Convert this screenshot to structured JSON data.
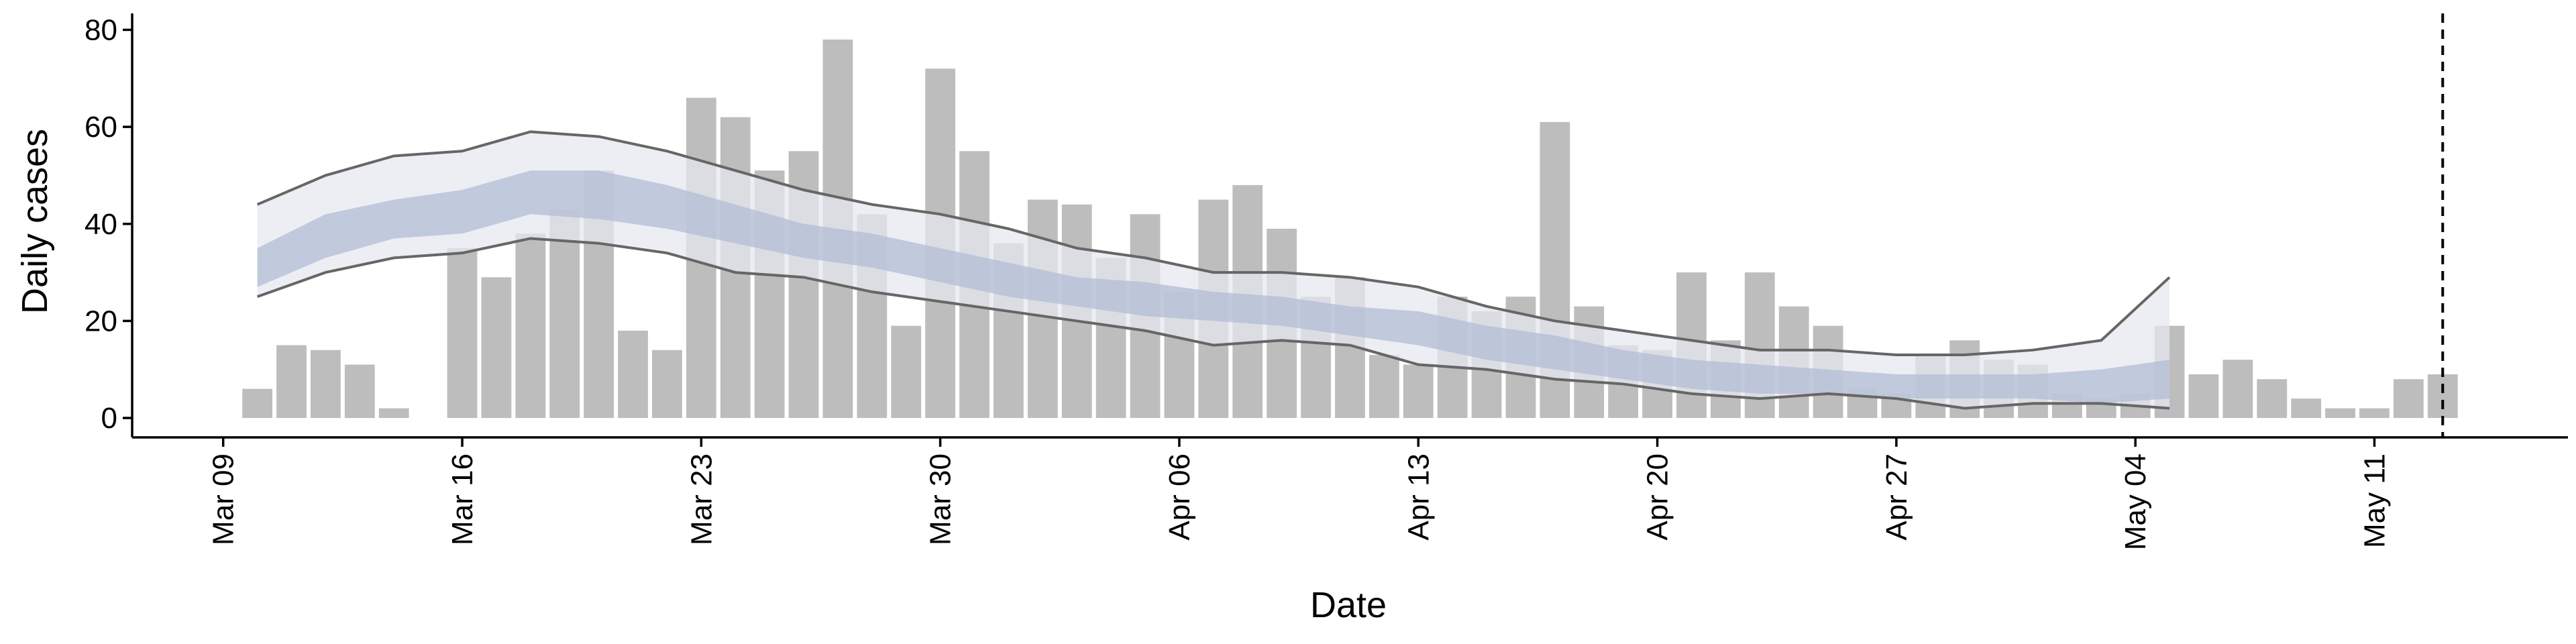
{
  "chart_data": {
    "type": "bar",
    "x_label": "Date",
    "y_label": "Daily cases",
    "xlim": [
      "Mar 06",
      "May 16"
    ],
    "xticks": [
      "Mar 09",
      "Mar 16",
      "Mar 23",
      "Mar 30",
      "Apr 06",
      "Apr 13",
      "Apr 20",
      "Apr 27",
      "May 04",
      "May 11"
    ],
    "ylim": [
      -4,
      82
    ],
    "yticks": [
      0,
      20,
      40,
      60,
      80
    ],
    "vline": "May 13",
    "x": [
      "Mar 10",
      "Mar 11",
      "Mar 12",
      "Mar 13",
      "Mar 14",
      "Mar 15",
      "Mar 16",
      "Mar 17",
      "Mar 18",
      "Mar 19",
      "Mar 20",
      "Mar 21",
      "Mar 22",
      "Mar 23",
      "Mar 24",
      "Mar 25",
      "Mar 26",
      "Mar 27",
      "Mar 28",
      "Mar 29",
      "Mar 30",
      "Mar 31",
      "Apr 01",
      "Apr 02",
      "Apr 03",
      "Apr 04",
      "Apr 05",
      "Apr 06",
      "Apr 07",
      "Apr 08",
      "Apr 09",
      "Apr 10",
      "Apr 11",
      "Apr 12",
      "Apr 13",
      "Apr 14",
      "Apr 15",
      "Apr 16",
      "Apr 17",
      "Apr 18",
      "Apr 19",
      "Apr 20",
      "Apr 21",
      "Apr 22",
      "Apr 23",
      "Apr 24",
      "Apr 25",
      "Apr 26",
      "Apr 27",
      "Apr 28",
      "Apr 29",
      "Apr 30",
      "May 01",
      "May 02",
      "May 03",
      "May 04",
      "May 05",
      "May 06",
      "May 07",
      "May 08",
      "May 09",
      "May 10",
      "May 11",
      "May 12",
      "May 13"
    ],
    "values": [
      6,
      15,
      14,
      11,
      2,
      null,
      35,
      29,
      38,
      43,
      51,
      18,
      14,
      66,
      62,
      51,
      55,
      78,
      42,
      19,
      72,
      55,
      36,
      45,
      44,
      33,
      42,
      26,
      45,
      48,
      39,
      25,
      29,
      13,
      11,
      25,
      22,
      25,
      61,
      23,
      15,
      14,
      30,
      16,
      30,
      23,
      19,
      6,
      5,
      13,
      16,
      12,
      11,
      5,
      4,
      5,
      19,
      9,
      12,
      8,
      4,
      2,
      2,
      8,
      9
    ],
    "color": "#bdbdbd",
    "bands": {
      "x": [
        "Mar 10",
        "Mar 12",
        "Mar 14",
        "Mar 16",
        "Mar 18",
        "Mar 20",
        "Mar 22",
        "Mar 24",
        "Mar 26",
        "Mar 28",
        "Mar 30",
        "Apr 01",
        "Apr 03",
        "Apr 05",
        "Apr 07",
        "Apr 09",
        "Apr 11",
        "Apr 13",
        "Apr 15",
        "Apr 17",
        "Apr 19",
        "Apr 21",
        "Apr 23",
        "Apr 25",
        "Apr 27",
        "Apr 29",
        "May 01",
        "May 03",
        "May 05"
      ],
      "outer_color": "#e6e8f0",
      "inner_color": "#b3bcd4",
      "line_color": "#666666",
      "outer_upper": [
        44,
        50,
        54,
        55,
        59,
        58,
        55,
        51,
        47,
        44,
        42,
        39,
        35,
        33,
        30,
        30,
        29,
        27,
        23,
        20,
        18,
        16,
        14,
        14,
        13,
        13,
        14,
        16,
        29
      ],
      "outer_lower": [
        25,
        30,
        33,
        34,
        37,
        36,
        34,
        30,
        29,
        26,
        24,
        22,
        20,
        18,
        15,
        16,
        15,
        11,
        10,
        8,
        7,
        5,
        4,
        5,
        4,
        2,
        3,
        3,
        2
      ],
      "inner_upper": [
        35,
        42,
        45,
        47,
        51,
        51,
        48,
        44,
        40,
        38,
        35,
        32,
        29,
        28,
        26,
        25,
        23,
        22,
        19,
        17,
        14,
        12,
        11,
        10,
        9,
        9,
        9,
        10,
        12
      ],
      "inner_lower": [
        27,
        33,
        37,
        38,
        42,
        41,
        39,
        36,
        33,
        31,
        28,
        25,
        23,
        21,
        20,
        19,
        17,
        15,
        12,
        10,
        8,
        6,
        5,
        5,
        4,
        4,
        4,
        3,
        4
      ]
    }
  }
}
